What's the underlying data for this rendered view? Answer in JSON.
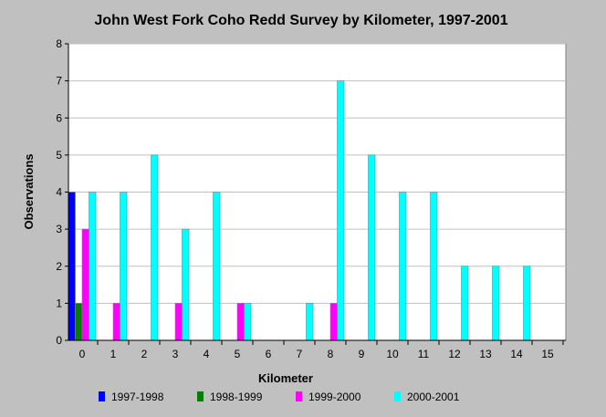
{
  "chart_data": {
    "type": "bar",
    "title": "John West Fork Coho Redd Survey by Kilometer, 1997-2001",
    "xlabel": "Kilometer",
    "ylabel": "Observations",
    "categories": [
      "0",
      "1",
      "2",
      "3",
      "4",
      "5",
      "6",
      "7",
      "8",
      "9",
      "10",
      "11",
      "12",
      "13",
      "14",
      "15"
    ],
    "ylim": [
      0,
      8
    ],
    "yticks": [
      0,
      1,
      2,
      3,
      4,
      5,
      6,
      7,
      8
    ],
    "grid": true,
    "legend_position": "bottom",
    "series": [
      {
        "name": "1997-1998",
        "color": "#0000ff",
        "values": [
          4,
          0,
          0,
          0,
          0,
          0,
          0,
          0,
          0,
          0,
          0,
          0,
          0,
          0,
          0,
          0
        ]
      },
      {
        "name": "1998-1999",
        "color": "#008000",
        "values": [
          1,
          0,
          0,
          0,
          0,
          0,
          0,
          0,
          0,
          0,
          0,
          0,
          0,
          0,
          0,
          0
        ]
      },
      {
        "name": "1999-2000",
        "color": "#ff00ff",
        "values": [
          3,
          1,
          0,
          1,
          0,
          1,
          0,
          0,
          1,
          0,
          0,
          0,
          0,
          0,
          0,
          0
        ]
      },
      {
        "name": "2000-2001",
        "color": "#00ffff",
        "values": [
          4,
          4,
          5,
          3,
          4,
          1,
          0,
          1,
          7,
          5,
          4,
          4,
          2,
          2,
          2,
          0
        ]
      }
    ]
  }
}
